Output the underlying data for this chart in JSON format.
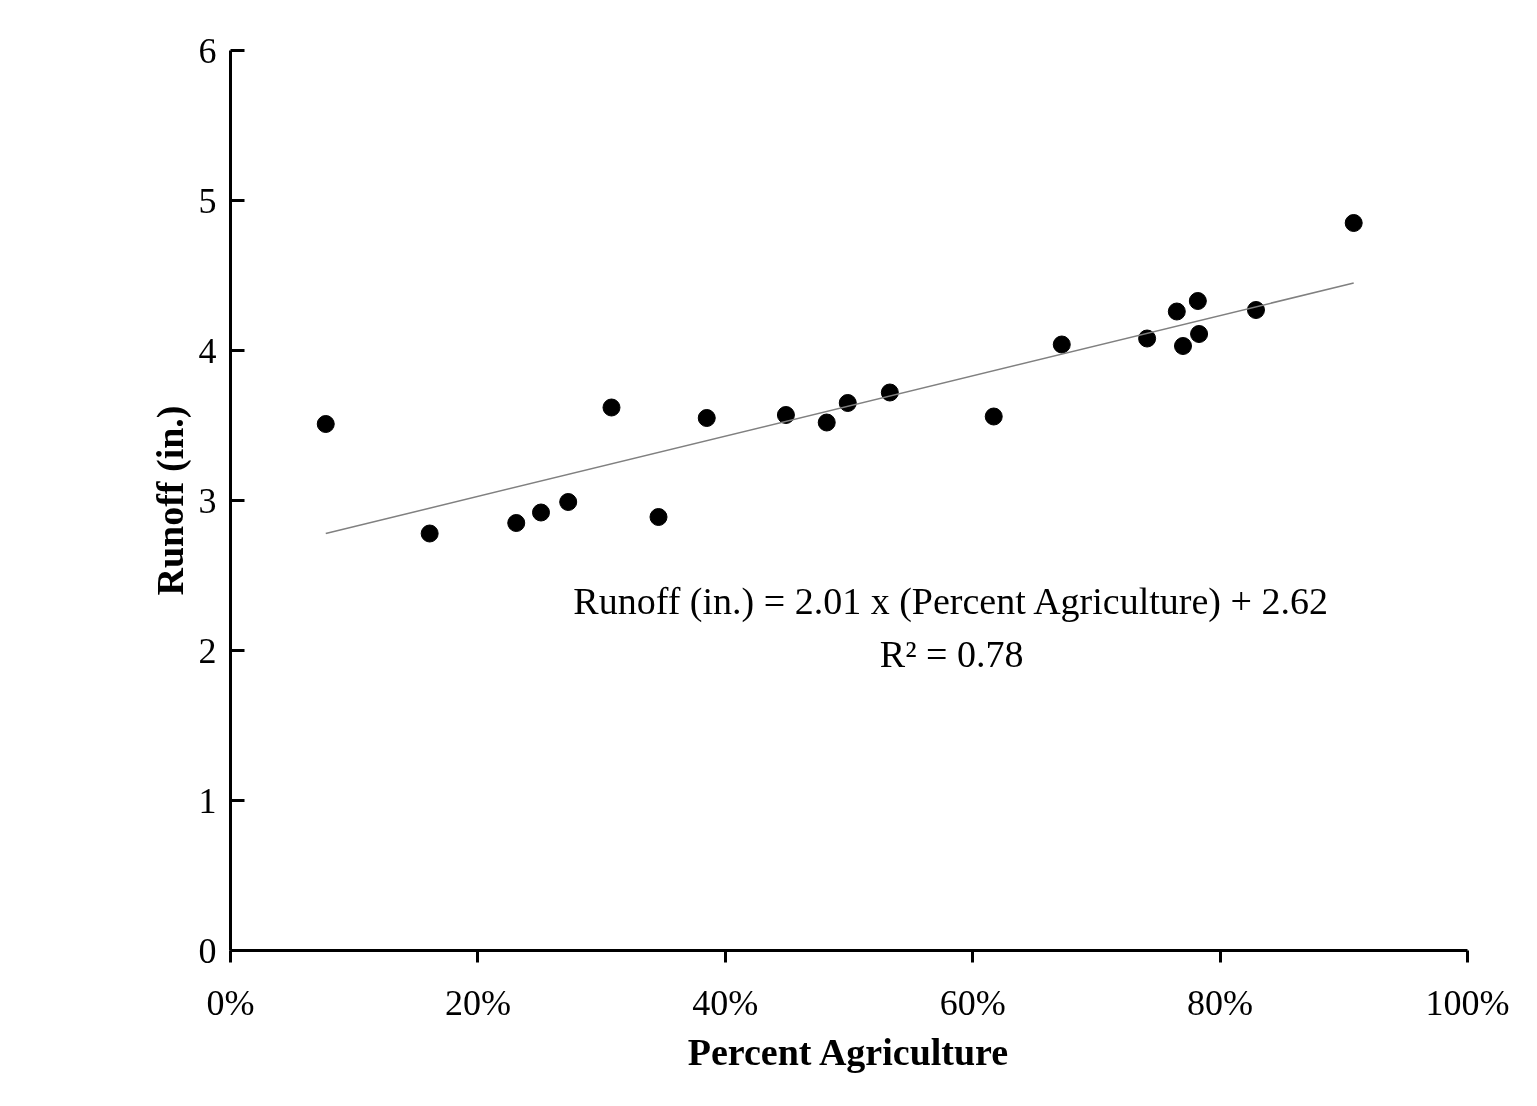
{
  "chart_data": {
    "type": "scatter",
    "xlabel": "Percent Agriculture",
    "ylabel": "Runoff (in.)",
    "xlim": [
      0,
      100
    ],
    "ylim": [
      0,
      6
    ],
    "xticks": [
      {
        "value": 0,
        "label": "0%"
      },
      {
        "value": 20,
        "label": "20%"
      },
      {
        "value": 40,
        "label": "40%"
      },
      {
        "value": 60,
        "label": "60%"
      },
      {
        "value": 80,
        "label": "80%"
      },
      {
        "value": 100,
        "label": "100%"
      }
    ],
    "yticks": [
      0,
      1,
      2,
      3,
      4,
      5,
      6
    ],
    "grid": false,
    "marker": "circle",
    "annotations": [
      "Runoff (in.) = 2.01 x (Percent Agriculture) + 2.62",
      "R² = 0.78"
    ],
    "series": [
      {
        "color": "#000000",
        "x": [
          7.7,
          16.1,
          23.1,
          25.1,
          27.3,
          30.8,
          34.6,
          38.5,
          44.9,
          48.2,
          49.9,
          53.3,
          61.7,
          67.2,
          74.1,
          76.5,
          77.0,
          78.2,
          78.3,
          82.9,
          90.8
        ],
        "values": [
          3.51,
          2.78,
          2.85,
          2.92,
          2.99,
          3.62,
          2.89,
          3.55,
          3.57,
          3.52,
          3.65,
          3.72,
          3.56,
          4.04,
          4.08,
          4.26,
          4.03,
          4.33,
          4.11,
          4.27,
          4.85
        ]
      },
      {
        "type": "line",
        "color": "#808080",
        "marker": "none",
        "line_style": "solid",
        "x": [
          7.7,
          90.8
        ],
        "values": [
          2.78,
          4.45
        ]
      }
    ]
  }
}
